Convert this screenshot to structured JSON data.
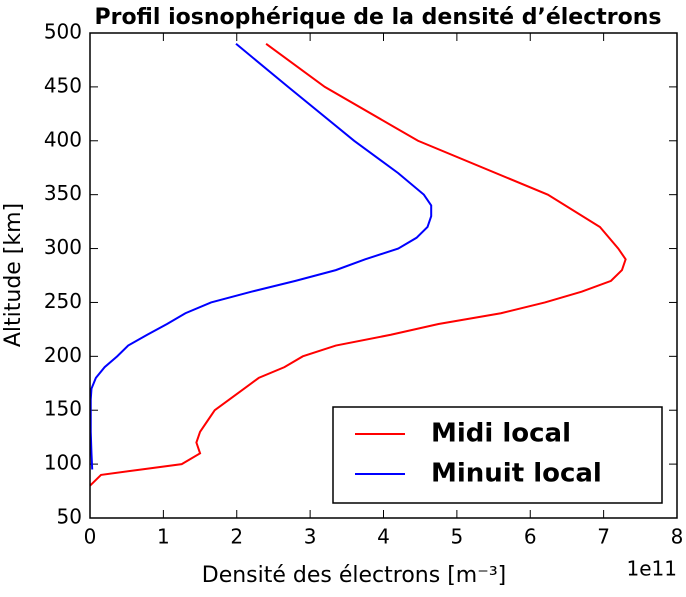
{
  "chart_data": {
    "type": "line",
    "title": "Profil iosnophérique de la densité d’électrons",
    "x_label": "Densité des électrons [m⁻³]",
    "y_label": "Altitude [km]",
    "x_offset_label": "1e11",
    "xlim": [
      0,
      8
    ],
    "xticks": [
      0,
      1,
      2,
      3,
      4,
      5,
      6,
      7,
      8
    ],
    "ylim": [
      50,
      500
    ],
    "yticks": [
      50,
      100,
      150,
      200,
      250,
      300,
      350,
      400,
      450,
      500
    ],
    "legend": "lower right",
    "series": [
      {
        "name": "Midi local",
        "color": "#ff0000",
        "values": [
          0,
          0.15,
          0.7,
          1.25,
          1.5,
          1.45,
          1.5,
          1.6,
          1.7,
          1.9,
          2.1,
          2.3,
          2.65,
          2.9,
          3.35,
          4.1,
          4.75,
          5.6,
          6.2,
          6.7,
          7.1,
          7.25,
          7.3,
          7.2,
          6.95,
          6.24,
          4.47,
          3.2,
          2.4
        ],
        "y": [
          80,
          90,
          95,
          100,
          110,
          120,
          130,
          140,
          150,
          160,
          170,
          180,
          190,
          200,
          210,
          220,
          230,
          240,
          250,
          260,
          270,
          280,
          290,
          300,
          320,
          350,
          400,
          450,
          490
        ]
      },
      {
        "name": "Minuit local",
        "color": "#0000ff",
        "values": [
          0.03,
          0.02,
          0.01,
          0.01,
          0.01,
          0.02,
          0.08,
          0.2,
          0.37,
          0.52,
          0.78,
          1.05,
          1.3,
          1.65,
          2.2,
          2.8,
          3.35,
          3.75,
          4.2,
          4.45,
          4.6,
          4.65,
          4.65,
          4.55,
          4.2,
          3.6,
          2.7,
          1.99
        ],
        "y": [
          95,
          110,
          130,
          150,
          160,
          170,
          180,
          190,
          200,
          210,
          220,
          230,
          240,
          250,
          260,
          270,
          280,
          290,
          300,
          310,
          320,
          330,
          340,
          350,
          370,
          400,
          450,
          490
        ]
      }
    ]
  }
}
